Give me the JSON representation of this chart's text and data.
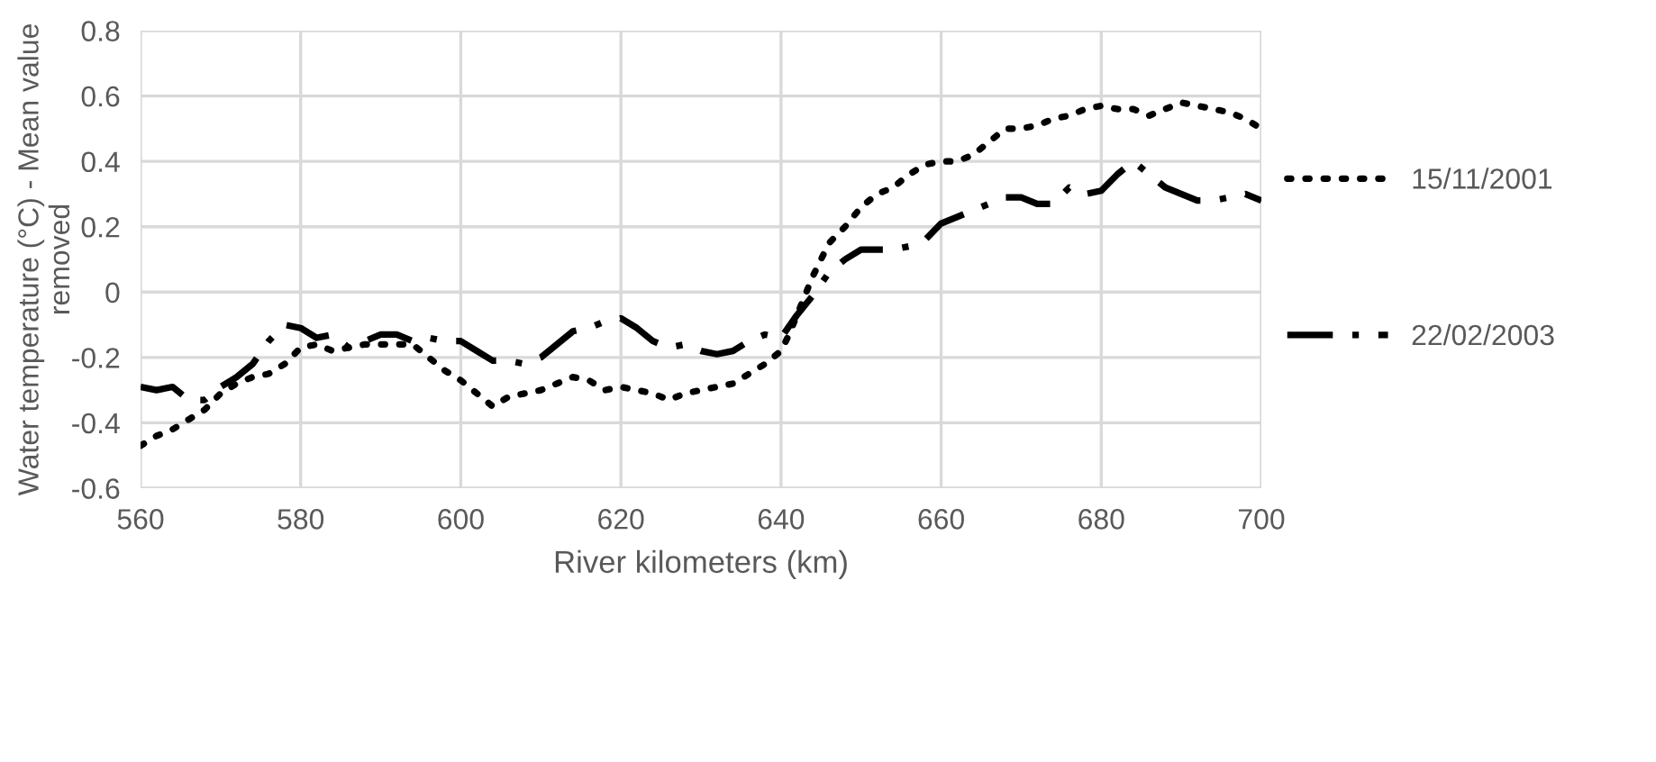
{
  "chart_data": {
    "type": "line",
    "xlabel": "River kilometers (km)",
    "ylabel": "Water temperature (°C) - Mean value removed",
    "xlim": [
      560,
      700
    ],
    "xticks": [
      560,
      580,
      600,
      620,
      640,
      660,
      680,
      700
    ],
    "ylim": [
      -0.6,
      0.8
    ],
    "yticks": [
      -0.6,
      -0.4,
      -0.2,
      0,
      0.2,
      0.4,
      0.6,
      0.8
    ],
    "grid": true,
    "legend": "right",
    "series": [
      {
        "name": "15/11/2001",
        "color": "#000000",
        "line_style": "dotted",
        "x": [
          560,
          562,
          564,
          566,
          568,
          570,
          572,
          574,
          576,
          578,
          580,
          582,
          584,
          586,
          588,
          590,
          592,
          594,
          596,
          598,
          600,
          602,
          604,
          606,
          608,
          610,
          612,
          614,
          616,
          618,
          620,
          622,
          624,
          626,
          628,
          630,
          632,
          634,
          636,
          638,
          640,
          641,
          642,
          643,
          644,
          645,
          646,
          648,
          650,
          652,
          654,
          656,
          658,
          660,
          662,
          664,
          666,
          668,
          670,
          672,
          674,
          676,
          678,
          680,
          682,
          684,
          686,
          688,
          690,
          692,
          694,
          696,
          698,
          700
        ],
        "values": [
          -0.47,
          -0.44,
          -0.42,
          -0.39,
          -0.36,
          -0.31,
          -0.28,
          -0.26,
          -0.25,
          -0.22,
          -0.17,
          -0.16,
          -0.18,
          -0.17,
          -0.16,
          -0.16,
          -0.16,
          -0.16,
          -0.2,
          -0.24,
          -0.27,
          -0.31,
          -0.35,
          -0.32,
          -0.31,
          -0.3,
          -0.28,
          -0.26,
          -0.27,
          -0.3,
          -0.29,
          -0.3,
          -0.31,
          -0.33,
          -0.31,
          -0.3,
          -0.29,
          -0.28,
          -0.25,
          -0.22,
          -0.18,
          -0.13,
          -0.07,
          -0.01,
          0.05,
          0.1,
          0.15,
          0.2,
          0.26,
          0.3,
          0.32,
          0.36,
          0.39,
          0.4,
          0.4,
          0.42,
          0.46,
          0.5,
          0.5,
          0.51,
          0.53,
          0.54,
          0.56,
          0.57,
          0.56,
          0.56,
          0.54,
          0.56,
          0.58,
          0.57,
          0.56,
          0.55,
          0.53,
          0.5
        ]
      },
      {
        "name": "22/02/2003",
        "color": "#000000",
        "line_style": "dashdot",
        "x": [
          560,
          562,
          564,
          566,
          568,
          570,
          572,
          574,
          576,
          578,
          580,
          582,
          584,
          586,
          588,
          590,
          592,
          594,
          596,
          598,
          600,
          602,
          604,
          606,
          608,
          610,
          612,
          614,
          616,
          618,
          620,
          622,
          624,
          626,
          628,
          630,
          632,
          634,
          636,
          638,
          640,
          642,
          644,
          646,
          648,
          650,
          652,
          654,
          656,
          658,
          660,
          662,
          664,
          666,
          668,
          670,
          672,
          674,
          676,
          678,
          680,
          682,
          684,
          686,
          688,
          690,
          692,
          694,
          696,
          698,
          700
        ],
        "values": [
          -0.29,
          -0.3,
          -0.29,
          -0.33,
          -0.33,
          -0.29,
          -0.26,
          -0.22,
          -0.15,
          -0.1,
          -0.11,
          -0.14,
          -0.13,
          -0.17,
          -0.15,
          -0.13,
          -0.13,
          -0.15,
          -0.14,
          -0.15,
          -0.15,
          -0.18,
          -0.21,
          -0.21,
          -0.22,
          -0.2,
          -0.16,
          -0.12,
          -0.11,
          -0.09,
          -0.08,
          -0.11,
          -0.15,
          -0.17,
          -0.16,
          -0.18,
          -0.19,
          -0.18,
          -0.15,
          -0.13,
          -0.14,
          -0.07,
          -0.01,
          0.06,
          0.1,
          0.13,
          0.13,
          0.13,
          0.14,
          0.16,
          0.21,
          0.23,
          0.25,
          0.27,
          0.29,
          0.29,
          0.27,
          0.27,
          0.32,
          0.3,
          0.31,
          0.36,
          0.4,
          0.36,
          0.32,
          0.3,
          0.28,
          0.28,
          0.29,
          0.3,
          0.28
        ]
      }
    ]
  }
}
